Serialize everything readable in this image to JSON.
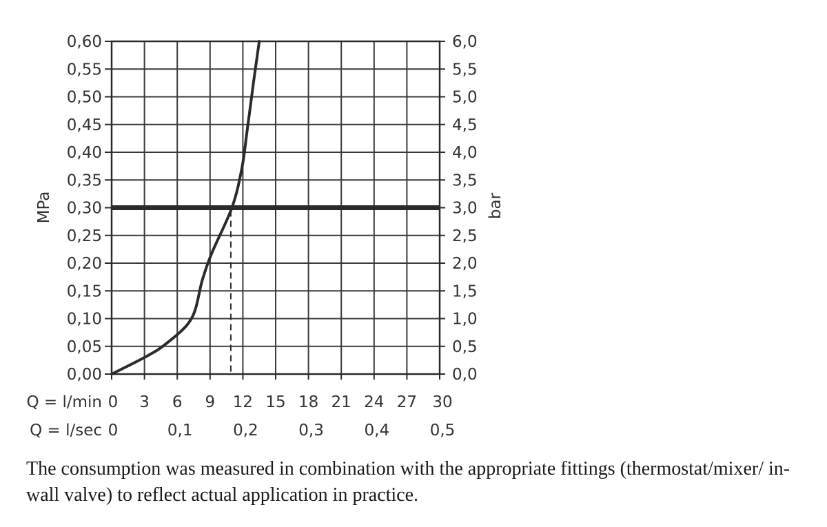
{
  "chart_data": {
    "type": "line",
    "y_left": {
      "label": "MPa",
      "range": [
        0,
        0.6
      ],
      "ticks": [
        "0,00",
        "0,05",
        "0,10",
        "0,15",
        "0,20",
        "0,25",
        "0,30",
        "0,35",
        "0,40",
        "0,45",
        "0,50",
        "0,55",
        "0,60"
      ]
    },
    "y_right": {
      "label": "bar",
      "range": [
        0,
        6
      ],
      "ticks": [
        "0,0",
        "0,5",
        "1,0",
        "1,5",
        "2,0",
        "2,5",
        "3,0",
        "3,5",
        "4,0",
        "4,5",
        "5,0",
        "5,5",
        "6,0"
      ]
    },
    "x_lmin": {
      "label": "Q = l/min",
      "range": [
        0,
        30
      ],
      "ticks": [
        "0",
        "3",
        "6",
        "9",
        "12",
        "15",
        "18",
        "21",
        "24",
        "27",
        "30"
      ]
    },
    "x_lsec": {
      "label": "Q = l/sec",
      "ticks": [
        "0",
        "0,1",
        "0,2",
        "0,3",
        "0,4",
        "0,5"
      ]
    },
    "grid": true,
    "series": [
      {
        "x": [
          0,
          3,
          5,
          7.3,
          8.3,
          9.2,
          11.0,
          11.9,
          12.4,
          13.0,
          13.5
        ],
        "y": [
          0,
          0.03,
          0.055,
          0.1,
          0.17,
          0.22,
          0.3,
          0.37,
          0.44,
          0.53,
          0.6
        ]
      }
    ],
    "reference_line": {
      "y": 0.3
    },
    "operating_point": {
      "x": 10.9,
      "y": 0.3
    }
  },
  "caption": {
    "text": "The consumption was measured in combination with the appropriate fittings (thermostat/mixer/ in-wall valve) to reflect actual application in practice."
  }
}
